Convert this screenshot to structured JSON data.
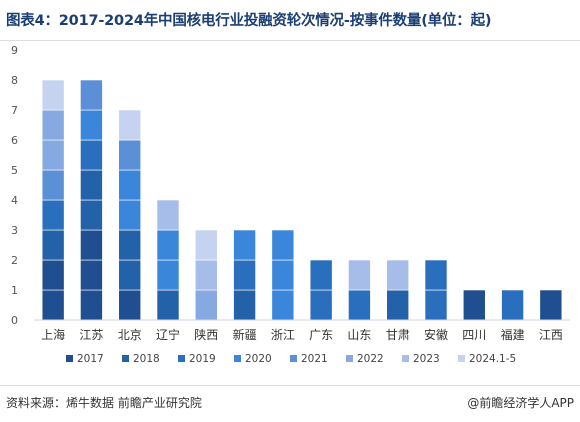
{
  "title": "图表4：2017-2024年中国核电行业投融资轮次情况-按事件数量(单位：起)",
  "footer": {
    "source": "资料来源：烯牛数据 前瞻产业研究院",
    "credit": "@前瞻经济学人APP"
  },
  "colors": [
    "#1f4e91",
    "#2361a8",
    "#2a6fbd",
    "#3a86da",
    "#5b8fd6",
    "#86a9e2",
    "#a7bde9",
    "#c5d3f0"
  ],
  "chart_data": {
    "type": "bar",
    "stacked": true,
    "categories": [
      "上海",
      "江苏",
      "北京",
      "辽宁",
      "陕西",
      "新疆",
      "浙江",
      "广东",
      "山东",
      "甘肃",
      "安徽",
      "四川",
      "福建",
      "江西"
    ],
    "series": [
      {
        "name": "2017",
        "values": [
          2,
          3,
          1,
          0,
          0,
          0,
          0,
          0,
          0,
          0,
          0,
          1,
          0,
          1
        ]
      },
      {
        "name": "2018",
        "values": [
          1,
          2,
          2,
          1,
          0,
          1,
          0,
          0,
          0,
          1,
          0,
          0,
          0,
          0
        ]
      },
      {
        "name": "2019",
        "values": [
          1,
          1,
          0,
          0,
          0,
          1,
          0,
          2,
          1,
          0,
          2,
          0,
          1,
          0
        ]
      },
      {
        "name": "2020",
        "values": [
          0,
          1,
          2,
          2,
          0,
          1,
          3,
          0,
          0,
          0,
          0,
          0,
          0,
          0
        ]
      },
      {
        "name": "2021",
        "values": [
          1,
          1,
          1,
          0,
          0,
          0,
          0,
          0,
          0,
          0,
          0,
          0,
          0,
          0
        ]
      },
      {
        "name": "2022",
        "values": [
          2,
          0,
          0,
          0,
          1,
          0,
          0,
          0,
          0,
          0,
          0,
          0,
          0,
          0
        ]
      },
      {
        "name": "2023",
        "values": [
          0,
          0,
          0,
          1,
          1,
          0,
          0,
          0,
          1,
          1,
          0,
          0,
          0,
          0
        ]
      },
      {
        "name": "2024.1-5",
        "values": [
          1,
          0,
          1,
          0,
          1,
          0,
          0,
          0,
          0,
          0,
          0,
          0,
          0,
          0
        ]
      }
    ],
    "ylim": [
      0,
      9
    ],
    "yticks": [
      0,
      1,
      2,
      3,
      4,
      5,
      6,
      7,
      8,
      9
    ],
    "legend_position": "bottom",
    "grid": false
  }
}
